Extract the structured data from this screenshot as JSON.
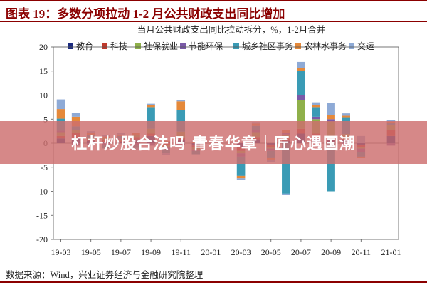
{
  "figure": {
    "title": "图表 19：多数分项拉动 1-2 月公共财政支出同比增加",
    "source": "数据来源：Wind，兴业证券经济与金融研究院整理"
  },
  "banner": {
    "text": "杠杆炒股合法吗 青春华章｜匠心遇国潮"
  },
  "colors": {
    "accent": "#8b0000",
    "教育": "#1a2a80",
    "科技": "#c0392b",
    "社保就业": "#8fb04a",
    "节能环保": "#7a5aa8",
    "城乡社区事务": "#3a9bb5",
    "农林水事务": "#e5893a",
    "交运": "#8eaad6"
  },
  "chart_data": {
    "type": "bar",
    "stacked": true,
    "title": "当月公共财政支出同比拉动拆分，%，1-2月合并",
    "xlabel": "",
    "ylabel": "",
    "ylim": [
      -20,
      20
    ],
    "yticks": [
      -20,
      -15,
      -10,
      -5,
      0,
      5,
      10,
      15,
      20
    ],
    "xtick_labels": [
      "19-03",
      "19-05",
      "19-07",
      "19-09",
      "19-11",
      "20-01",
      "20-03",
      "20-05",
      "20-07",
      "20-09",
      "20-11",
      "21-01"
    ],
    "legend_position": "top",
    "categories": [
      "19-03",
      "19-04",
      "19-05",
      "19-06",
      "19-07",
      "19-08",
      "19-09",
      "19-10",
      "19-11",
      "19-12",
      "20-01",
      "20-02",
      "20-03",
      "20-04",
      "20-05",
      "20-06",
      "20-07",
      "20-08",
      "20-09",
      "20-10",
      "20-11",
      "20-12",
      "21-01"
    ],
    "series": [
      {
        "name": "教育",
        "values": [
          1.0,
          1.2,
          0.5,
          0.3,
          0.3,
          0.8,
          1.5,
          0.2,
          0.8,
          -0.5,
          0,
          0,
          -0.8,
          0.8,
          -0.3,
          0.5,
          2.0,
          1.2,
          1.0,
          0.6,
          -0.3,
          0,
          1.5
        ]
      },
      {
        "name": "科技",
        "values": [
          0.5,
          1.0,
          0.3,
          0.5,
          0.2,
          0.5,
          0.5,
          -0.3,
          0.3,
          -0.3,
          0,
          0,
          -0.8,
          0.5,
          -0.5,
          0.5,
          1.0,
          0.8,
          0.5,
          0.3,
          -0.5,
          0,
          1.2
        ]
      },
      {
        "name": "社保就业",
        "values": [
          0.8,
          0.5,
          0.4,
          0.3,
          0.3,
          0.4,
          1.0,
          -0.5,
          1.3,
          -0.5,
          0,
          0,
          -0.5,
          1.0,
          -0.3,
          0.8,
          6.0,
          3.0,
          3.0,
          1.0,
          -0.3,
          0,
          1.0
        ]
      },
      {
        "name": "节能环保",
        "values": [
          0.3,
          -0.5,
          -0.3,
          -0.3,
          0.2,
          -0.5,
          -0.5,
          -0.5,
          -0.3,
          -0.3,
          0,
          0,
          -0.7,
          0.5,
          -0.5,
          0.4,
          1.0,
          0.5,
          0.5,
          -0.3,
          -0.7,
          0,
          -0.5
        ]
      },
      {
        "name": "城乡社区事务",
        "values": [
          2.5,
          0.8,
          0.5,
          -0.8,
          0.5,
          -0.5,
          4.5,
          -0.8,
          4.5,
          -0.7,
          0,
          0,
          -4.0,
          0.8,
          -1.5,
          -10.5,
          5.0,
          2.0,
          -10.0,
          3.5,
          -1.0,
          0,
          0.5
        ]
      },
      {
        "name": "农林水事务",
        "values": [
          2.0,
          2.0,
          0.5,
          0.3,
          0.3,
          0.5,
          0.5,
          0.3,
          1.8,
          0.3,
          0,
          0,
          -0.5,
          0.5,
          -0.3,
          0.6,
          0.7,
          0.5,
          0.8,
          0.3,
          -0.3,
          0,
          0.3
        ]
      },
      {
        "name": "交运",
        "values": [
          2.0,
          0.8,
          0.3,
          0.3,
          0.3,
          -0.3,
          0.2,
          -0.3,
          0.3,
          0.2,
          0,
          0,
          -0.3,
          0.3,
          -0.5,
          -0.3,
          1.2,
          0.5,
          2.5,
          0.5,
          1.5,
          0,
          0.3
        ]
      }
    ]
  }
}
